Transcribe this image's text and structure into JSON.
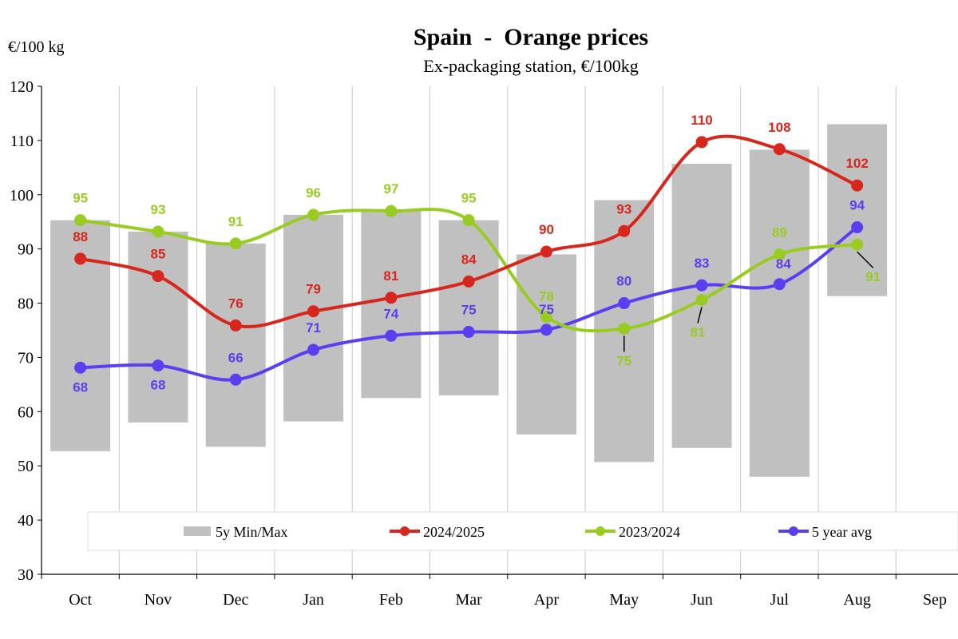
{
  "unit_label": "€/100 kg",
  "colors": {
    "range_bar": "#c0c0c0",
    "series_2024_2025": "#d7261c",
    "series_2023_2024": "#99cc22",
    "series_5yavg": "#5a3ff0",
    "grid": "#c8c8c8"
  },
  "chart_data": {
    "type": "line",
    "title": "Spain  -  Orange prices",
    "subtitle": "Ex-packaging station, €/100kg",
    "ylabel": "€/100 kg",
    "xlabel": "",
    "ylim": [
      30,
      120
    ],
    "yticks": [
      30,
      40,
      50,
      60,
      70,
      80,
      90,
      100,
      110,
      120
    ],
    "categories": [
      "Oct",
      "Nov",
      "Dec",
      "Jan",
      "Feb",
      "Mar",
      "Apr",
      "May",
      "Jun",
      "Jul",
      "Aug",
      "Sep"
    ],
    "grid": "vertical lines between months",
    "legend_position": "bottom",
    "range": {
      "name": "5y Min/Max",
      "min": [
        52.7,
        58.0,
        53.5,
        58.2,
        62.5,
        63.0,
        55.8,
        50.7,
        53.3,
        48.0,
        81.3,
        null
      ],
      "max": [
        95.3,
        93.2,
        91.0,
        96.3,
        97.0,
        95.3,
        89.0,
        99.0,
        105.7,
        108.3,
        113.0,
        null
      ]
    },
    "series": [
      {
        "name": "2024/2025",
        "values": [
          88.2,
          85.0,
          75.9,
          78.5,
          81.0,
          84.0,
          89.5,
          93.3,
          109.7,
          108.4,
          101.7,
          null
        ],
        "labels": [
          "88",
          "85",
          "76",
          "79",
          "81",
          "84",
          "90",
          "93",
          "110",
          "108",
          "102",
          ""
        ]
      },
      {
        "name": "2023/2024",
        "values": [
          95.3,
          93.2,
          91.0,
          96.3,
          97.0,
          95.3,
          77.5,
          75.3,
          80.6,
          89.0,
          90.8,
          null
        ],
        "labels": [
          "95",
          "93",
          "91",
          "96",
          "97",
          "95",
          "78",
          "75",
          "81",
          "89",
          "91",
          ""
        ]
      },
      {
        "name": "5 year avg",
        "values": [
          68.1,
          68.5,
          65.9,
          71.4,
          74.0,
          74.7,
          75.1,
          80.0,
          83.3,
          83.5,
          94.0,
          null
        ],
        "labels": [
          "68",
          "68",
          "66",
          "71",
          "74",
          "75",
          "75",
          "80",
          "83",
          "84",
          "94",
          ""
        ]
      }
    ]
  }
}
